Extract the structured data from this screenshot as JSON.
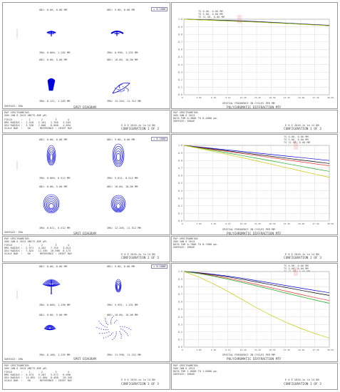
{
  "spot_title": "SPOT DIAGRAM",
  "mtf_title": "POLYCHROMATIC DIFFRACTION MTF",
  "x_axis_label": "SPATIAL FREQUENCY IN CYCLES PER MM",
  "date_line": "E 0 E 2016-Ju la 14 DN",
  "surface_label": "SURFACE: IMA",
  "mtf_y_ticks": [
    "1.0",
    "0.9",
    "0.8",
    "0.7",
    "0.6",
    "0.5",
    "0.4",
    "0.3",
    "0.2",
    "0.1",
    "0.0"
  ],
  "mtf_x_ticks": [
    "0",
    "3.05",
    "6.10",
    "9.15",
    "12.20",
    "15.25",
    "18.30",
    "21.35",
    "24.40",
    "27.45",
    "30.50"
  ],
  "colors": {
    "blue": "#0000dd",
    "black": "#000000",
    "green": "#22aa22",
    "yellow": "#c8c800",
    "red": "#ee3333",
    "grid": "#cfcfcf"
  },
  "configs": [
    {
      "scale_box": "+ 0.1000",
      "field_labels": [
        "OBJ: 0.00, 0.00 MM",
        "OBJ: 5.00, 0.00 MM",
        "IMA: 0.000, 1.182 MM",
        "IMA: 0.998, 1.192 MM",
        "OBJ: 0.00, 5.00 MM",
        "OBJ: 10.00, 10.00 MM",
        "IMA: 0.121, 1.183 MM",
        "IMA: 13.204, 11.312 MM"
      ],
      "footer_left": "SURFACE: IMA",
      "stats": [
        "POP SPECTROMETOR",
        "SUN JAN 6 2013 UNITS ARE µM.",
        "FIELD      :    1       2        3       4",
        "RMS RADIUS :  1.516   2.161   1.766   2.163",
        "GEO RADIUS :  3.338   7.888   8.008   4.894",
        "SCALE BAR  :   50      REFERENCE : CHIEF RAY"
      ],
      "config_line": "CONFIGURATION 1 OF 3",
      "mtf_legend": [
        "TS 0.00, 0.00 MM",
        "TS 5.00, 0.00 MM",
        "TS 11.58, 0.00 MM"
      ],
      "mtf_info": [
        "POP SPECTROMETOR",
        "SUN JAN 6 2013",
        "DATA FOR 0.4800 TO 0.4800 µm.",
        "SURFACE: IMAGE"
      ]
    },
    {
      "scale_box": "+ 0.1000",
      "field_labels": [
        "OBJ: 0.00, 0.00 MM",
        "OBJ: 5.00, 0.00 MM",
        "IMA: 0.000, 0.512 MM",
        "IMA: 5.011, 0.512 MM",
        "OBJ: 0.00, 5.00 MM",
        "OBJ: 10.00, 10.00 MM",
        "IMA: 0.011, 5.512 MM",
        "IMA: 12.205, 11.512 MM"
      ],
      "footer_left": "SURFACE: IMA",
      "stats": [
        "POP SPECTROMETOR",
        "SUN JAN 6 2013 UNITS ARE µM.",
        "FIELD      :    1       2        3       4",
        "RMS RADIUS :  2.971   4.262   7.755   3.013",
        "GEO RADIUS :  7.825   11.336  16.986  8.173",
        "SCALE BAR  :   50      REFERENCE : CHIEF RAY"
      ],
      "config_line": "CONFIGURATION 2 OF 3",
      "mtf_legend": [
        "TS 0.00, 0.00 MM",
        "TS 5.00, 0.00 MM",
        "TS 11.58, 0.00 MM"
      ],
      "mtf_info": [
        "POP SPECTROMETOR",
        "SUN JAN 6 2013",
        "DATA FOR 0.7000 TO 0.7000 µm.",
        "SURFACE: IMAGE"
      ]
    },
    {
      "scale_box": "+ 0.1000",
      "field_labels": [
        "OBJ: 0.00, 0.00 MM",
        "OBJ: 5.00, 0.00 MM",
        "IMA: 0.000, 1.190 MM",
        "IMA: 5.991, 1.191 MM",
        "OBJ: 0.00, 5.00 MM",
        "OBJ: 10.00, 10.00 MM",
        "IMA: 0.108, 1.192 MM",
        "IMA: 11.998, 11.191 MM"
      ],
      "footer_left": "SURFACE: IMA",
      "stats": [
        "POP SPECTROMETOR",
        "SUN JAN 6 2013 UNITS ARE µM.",
        "FIELD      :    1       2        3       4",
        "RMS RADIUS :  4.574   5.207   3.572   6.898",
        "GEO RADIUS :  13.891  11.884  8.488   26.345",
        "SCALE BAR  :   50      REFERENCE : CHIEF RAY"
      ],
      "config_line": "CONFIGURATION 3 OF 3",
      "mtf_legend": [
        "TS 0.00, 0.00 MM",
        "TS 5.00, 0.00 MM",
        "TS 11.58, 0.00 MM"
      ],
      "mtf_info": [
        "POP SPECTROMETOR",
        "SUN JAN 6 2013",
        "DATA FOR 1.0000 TO 1.0000 µm.",
        "SURFACE: IMAGE"
      ]
    }
  ],
  "chart_data": [
    {
      "type": "line",
      "title": "POLYCHROMATIC DIFFRACTION MTF",
      "xlabel": "SPATIAL FREQUENCY IN CYCLES PER MM",
      "xlim": [
        0,
        30.5
      ],
      "ylim": [
        0,
        1
      ],
      "x": [
        0,
        3.05,
        6.1,
        9.15,
        12.2,
        15.25,
        18.3,
        21.35,
        24.4,
        27.45,
        30.5
      ],
      "series": [
        {
          "color": "#0000dd",
          "values": [
            1.0,
            0.995,
            0.99,
            0.985,
            0.978,
            0.97,
            0.96,
            0.95,
            0.94,
            0.93,
            0.92
          ]
        },
        {
          "color": "#000000",
          "values": [
            1.0,
            0.994,
            0.988,
            0.982,
            0.975,
            0.966,
            0.957,
            0.947,
            0.937,
            0.927,
            0.917
          ]
        },
        {
          "color": "#22aa22",
          "values": [
            1.0,
            0.993,
            0.986,
            0.979,
            0.971,
            0.963,
            0.954,
            0.945,
            0.935,
            0.925,
            0.915
          ]
        },
        {
          "color": "#c8c800",
          "values": [
            1.0,
            0.992,
            0.985,
            0.977,
            0.97,
            0.962,
            0.953,
            0.944,
            0.934,
            0.924,
            0.914
          ]
        }
      ]
    },
    {
      "type": "line",
      "title": "POLYCHROMATIC DIFFRACTION MTF",
      "xlabel": "SPATIAL FREQUENCY IN CYCLES PER MM",
      "xlim": [
        0,
        30.5
      ],
      "ylim": [
        0,
        1
      ],
      "x": [
        0,
        3.05,
        6.1,
        9.15,
        12.2,
        15.25,
        18.3,
        21.35,
        24.4,
        27.45,
        30.5
      ],
      "series": [
        {
          "color": "#0000dd",
          "values": [
            1.0,
            0.98,
            0.96,
            0.94,
            0.92,
            0.9,
            0.88,
            0.86,
            0.84,
            0.82,
            0.8
          ]
        },
        {
          "color": "#000000",
          "values": [
            1.0,
            0.976,
            0.952,
            0.928,
            0.904,
            0.88,
            0.856,
            0.832,
            0.808,
            0.784,
            0.76
          ]
        },
        {
          "color": "#ee3333",
          "values": [
            1.0,
            0.973,
            0.946,
            0.919,
            0.892,
            0.865,
            0.838,
            0.811,
            0.784,
            0.757,
            0.73
          ]
        },
        {
          "color": "#22aa22",
          "values": [
            1.0,
            0.968,
            0.936,
            0.9,
            0.866,
            0.83,
            0.796,
            0.76,
            0.726,
            0.69,
            0.656
          ]
        },
        {
          "color": "#c8c800",
          "values": [
            1.0,
            0.962,
            0.922,
            0.88,
            0.838,
            0.795,
            0.752,
            0.708,
            0.664,
            0.62,
            0.578
          ]
        }
      ]
    },
    {
      "type": "line",
      "title": "POLYCHROMATIC DIFFRACTION MTF",
      "xlabel": "SPATIAL FREQUENCY IN CYCLES PER MM",
      "xlim": [
        0,
        30.5
      ],
      "ylim": [
        0,
        1
      ],
      "x": [
        0,
        3.05,
        6.1,
        9.15,
        12.2,
        15.25,
        18.3,
        21.35,
        24.4,
        27.45,
        30.5
      ],
      "series": [
        {
          "color": "#0000dd",
          "values": [
            1.0,
            0.985,
            0.965,
            0.94,
            0.912,
            0.88,
            0.848,
            0.815,
            0.782,
            0.75,
            0.72
          ]
        },
        {
          "color": "#000000",
          "values": [
            1.0,
            0.982,
            0.958,
            0.93,
            0.898,
            0.862,
            0.826,
            0.79,
            0.754,
            0.718,
            0.684
          ]
        },
        {
          "color": "#ee3333",
          "values": [
            1.0,
            0.978,
            0.948,
            0.912,
            0.872,
            0.83,
            0.786,
            0.742,
            0.698,
            0.656,
            0.616
          ]
        },
        {
          "color": "#22aa22",
          "values": [
            1.0,
            0.974,
            0.94,
            0.9,
            0.856,
            0.81,
            0.764,
            0.716,
            0.67,
            0.624,
            0.58
          ]
        },
        {
          "color": "#c8c800",
          "values": [
            1.0,
            0.93,
            0.84,
            0.74,
            0.63,
            0.52,
            0.42,
            0.33,
            0.25,
            0.18,
            0.12
          ]
        }
      ]
    }
  ]
}
